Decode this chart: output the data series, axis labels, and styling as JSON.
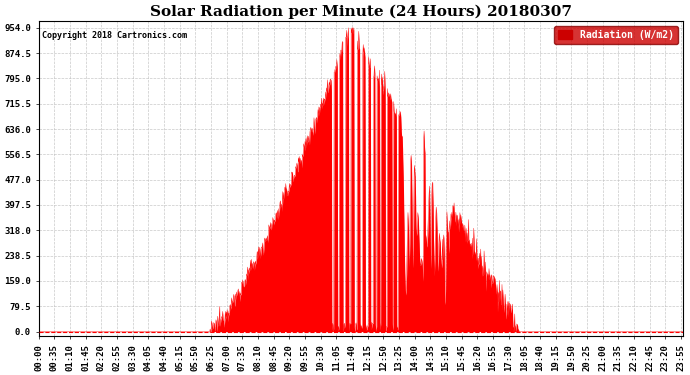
{
  "title": "Solar Radiation per Minute (24 Hours) 20180307",
  "copyright_text": "Copyright 2018 Cartronics.com",
  "legend_label": "Radiation (W/m2)",
  "y_ticks": [
    0.0,
    79.5,
    159.0,
    238.5,
    318.0,
    397.5,
    477.0,
    556.5,
    636.0,
    715.5,
    795.0,
    874.5,
    954.0
  ],
  "y_max": 975,
  "y_min": -15,
  "fill_color": "#FF0000",
  "line_color": "#FF0000",
  "background_color": "#FFFFFF",
  "grid_color": "#BBBBBB",
  "title_fontsize": 11,
  "axis_fontsize": 6.5,
  "legend_bg": "#CC0000",
  "legend_text_color": "#FFFFFF",
  "tick_interval_minutes": 35,
  "sunrise_minute": 382,
  "sunset_minute": 1075,
  "peak_minute": 695,
  "peak_value": 954
}
